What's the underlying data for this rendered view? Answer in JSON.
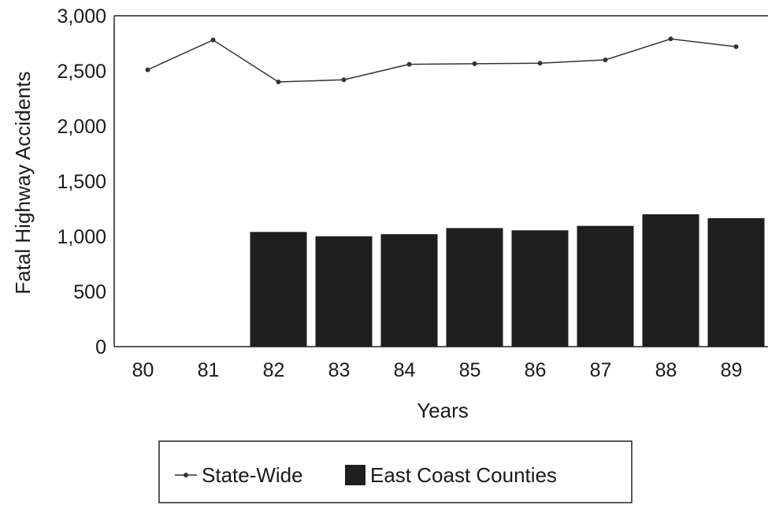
{
  "chart_data": {
    "type": "bar",
    "title": "",
    "xlabel": "Years",
    "ylabel": "Fatal Highway Accidents",
    "categories": [
      "80",
      "81",
      "82",
      "83",
      "84",
      "85",
      "86",
      "87",
      "88",
      "89"
    ],
    "ylim": [
      0,
      3000
    ],
    "yticks": [
      "0",
      "500",
      "1,000",
      "1,500",
      "2,000",
      "2,500",
      "3,000"
    ],
    "ytick_values": [
      0,
      500,
      1000,
      1500,
      2000,
      2500,
      3000
    ],
    "grid": false,
    "legend_position": "bottom",
    "series": [
      {
        "name": "State-Wide",
        "kind": "line",
        "color": "#333333",
        "values": [
          2510,
          2780,
          2400,
          2420,
          2560,
          2565,
          2570,
          2600,
          2790,
          2720
        ]
      },
      {
        "name": "East Coast Counties",
        "kind": "bar",
        "color": "#1e1e1e",
        "values": [
          null,
          null,
          1040,
          1000,
          1020,
          1075,
          1055,
          1095,
          1200,
          1165
        ]
      }
    ]
  }
}
